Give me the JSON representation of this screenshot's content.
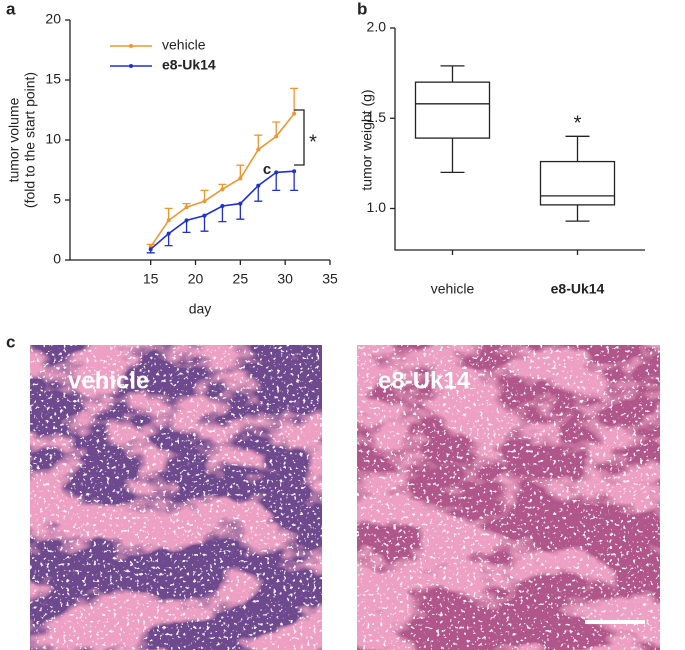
{
  "chart_data": [
    {
      "type": "line",
      "panel_label": "a",
      "xlabel": "day",
      "ylabel": [
        "tumor volume",
        "(fold to the start point)"
      ],
      "x": [
        15,
        17,
        19,
        21,
        23,
        25,
        27,
        29,
        31
      ],
      "series": [
        {
          "name": "vehicle",
          "color": "#f0962f",
          "values": [
            1.1,
            3.3,
            4.4,
            4.9,
            5.9,
            6.8,
            9.2,
            10.3,
            12.2
          ],
          "errors": [
            0.2,
            1.0,
            0.3,
            0.9,
            0.4,
            1.1,
            1.2,
            1.2,
            2.1
          ]
        },
        {
          "name": "e8-Uk14",
          "color": "#1f2fd6",
          "values": [
            0.9,
            2.2,
            3.3,
            3.7,
            4.5,
            4.7,
            6.2,
            7.3,
            7.4
          ],
          "errors": [
            0.3,
            1.0,
            1.0,
            1.3,
            1.3,
            1.3,
            1.3,
            1.5,
            1.6
          ]
        }
      ],
      "xlim": [
        6,
        35
      ],
      "xticks": [
        15,
        20,
        25,
        30,
        35
      ],
      "ylim": [
        0,
        20
      ],
      "yticks": [
        0,
        5,
        10,
        15,
        20
      ],
      "annotations": [
        "*",
        "c"
      ]
    },
    {
      "type": "box",
      "panel_label": "b",
      "ylabel": "tumor weight (g)",
      "categories": [
        "vehicle",
        "e8-Uk14"
      ],
      "boxes": [
        {
          "min": 1.2,
          "q1": 1.39,
          "median": 1.58,
          "q3": 1.7,
          "max": 1.79
        },
        {
          "min": 0.93,
          "q1": 1.02,
          "median": 1.07,
          "q3": 1.26,
          "max": 1.4
        }
      ],
      "ylim": [
        0.77,
        2.0
      ],
      "yticks": [
        {
          "value": 1,
          "label": "1.0"
        },
        1.5,
        {
          "value": 2,
          "label": "2.0"
        }
      ],
      "annotations": [
        "*"
      ]
    }
  ],
  "images": {
    "panel_label": "c",
    "labels": [
      "vehicle",
      "e8-Uk14"
    ]
  }
}
